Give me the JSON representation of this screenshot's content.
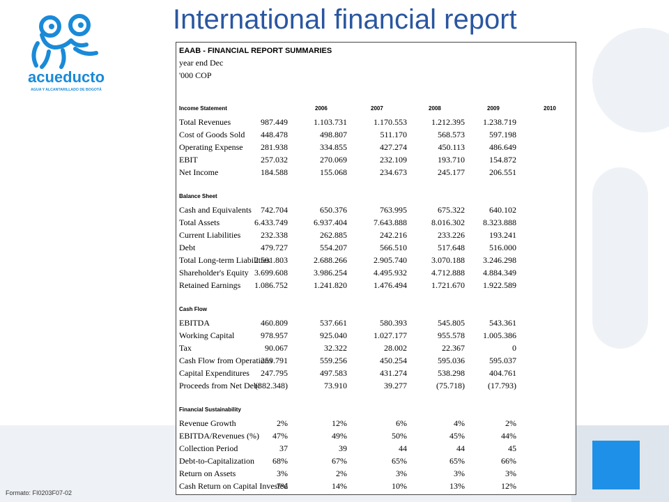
{
  "page": {
    "title": "International financial report",
    "footer_code": "Formato: FI0203F07-02"
  },
  "logo": {
    "name": "acueducto",
    "tagline": "AGUA Y ALCANTARILLADO DE BOGOTÁ",
    "color": "#1a8ad8"
  },
  "report": {
    "title": "EAAB - FINANCIAL REPORT SUMMARIES",
    "subtitle1": "year end Dec",
    "subtitle2": "'000 COP",
    "years": [
      "2006",
      "2007",
      "2008",
      "2009",
      "2010"
    ],
    "sections": [
      {
        "name": "Income Statement",
        "rows": [
          {
            "label": "Total Revenues",
            "values": [
              "987.449",
              "1.103.731",
              "1.170.553",
              "1.212.395",
              "1.238.719"
            ]
          },
          {
            "label": "Cost of Goods Sold",
            "values": [
              "448.478",
              "498.807",
              "511.170",
              "568.573",
              "597.198"
            ]
          },
          {
            "label": "Operating Expense",
            "values": [
              "281.938",
              "334.855",
              "427.274",
              "450.113",
              "486.649"
            ]
          },
          {
            "label": "EBIT",
            "values": [
              "257.032",
              "270.069",
              "232.109",
              "193.710",
              "154.872"
            ]
          },
          {
            "label": "Net Income",
            "values": [
              "184.588",
              "155.068",
              "234.673",
              "245.177",
              "206.551"
            ]
          }
        ]
      },
      {
        "name": "Balance Sheet",
        "rows": [
          {
            "label": "Cash and Equivalents",
            "values": [
              "742.704",
              "650.376",
              "763.995",
              "675.322",
              "640.102"
            ]
          },
          {
            "label": "Total Assets",
            "values": [
              "6.433.749",
              "6.937.404",
              "7.643.888",
              "8.016.302",
              "8.323.888"
            ]
          },
          {
            "label": "Current Liabilities",
            "values": [
              "232.338",
              "262.885",
              "242.216",
              "233.226",
              "193.241"
            ]
          },
          {
            "label": "Debt",
            "values": [
              "479.727",
              "554.207",
              "566.510",
              "517.648",
              "516.000"
            ]
          },
          {
            "label": "Total Long-term Liabilities",
            "values": [
              "2.501.803",
              "2.688.266",
              "2.905.740",
              "3.070.188",
              "3.246.298"
            ]
          },
          {
            "label": "Shareholder's Equity",
            "values": [
              "3.699.608",
              "3.986.254",
              "4.495.932",
              "4.712.888",
              "4.884.349"
            ]
          },
          {
            "label": "Retained Earnings",
            "values": [
              "1.086.752",
              "1.241.820",
              "1.476.494",
              "1.721.670",
              "1.922.589"
            ]
          }
        ]
      },
      {
        "name": "Cash Flow",
        "rows": [
          {
            "label": "EBITDA",
            "values": [
              "460.809",
              "537.661",
              "580.393",
              "545.805",
              "543.361"
            ]
          },
          {
            "label": "Working Capital",
            "values": [
              "978.957",
              "925.040",
              "1.027.177",
              "955.578",
              "1.005.386"
            ]
          },
          {
            "label": "Tax",
            "values": [
              "90.067",
              "32.322",
              "28.002",
              "22.367",
              "0"
            ]
          },
          {
            "label": "Cash Flow from Operations",
            "values": [
              "259.791",
              "559.256",
              "450.254",
              "595.036",
              "595.037"
            ]
          },
          {
            "label": "Capital Expenditures",
            "values": [
              "247.795",
              "497.583",
              "431.274",
              "538.298",
              "404.761"
            ]
          },
          {
            "label": "Proceeds from Net Debt",
            "values": [
              "(382.348)",
              "73.910",
              "39.277",
              "(75.718)",
              "(17.793)"
            ]
          }
        ]
      },
      {
        "name": "Financial Sustainability",
        "rows": [
          {
            "label": "Revenue Growth",
            "values": [
              "2%",
              "12%",
              "6%",
              "4%",
              "2%"
            ]
          },
          {
            "label": "EBITDA/Revenues (%)",
            "values": [
              "47%",
              "49%",
              "50%",
              "45%",
              "44%"
            ]
          },
          {
            "label": "Collection Period",
            "values": [
              "37",
              "39",
              "44",
              "44",
              "45"
            ]
          },
          {
            "label": "Debt-to-Capitalization",
            "values": [
              "68%",
              "67%",
              "65%",
              "65%",
              "66%"
            ]
          },
          {
            "label": "Return on Assets",
            "values": [
              "3%",
              "2%",
              "3%",
              "3%",
              "3%"
            ]
          },
          {
            "label": "Cash Return on Capital Invested",
            "values": [
              "7%",
              "14%",
              "10%",
              "13%",
              "12%"
            ]
          }
        ]
      }
    ]
  }
}
